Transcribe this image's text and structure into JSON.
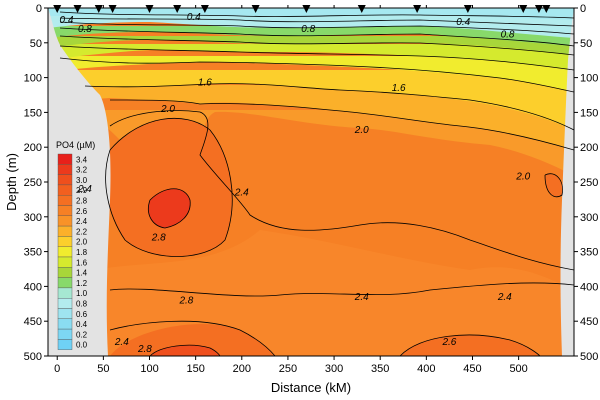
{
  "chart_data": {
    "type": "heatmap",
    "title": "",
    "xlabel": "Distance (kM)",
    "ylabel": "Depth (m)",
    "xlim": [
      -10,
      560
    ],
    "ylim": [
      500,
      0
    ],
    "x_ticks": [
      "0",
      "50",
      "100",
      "150",
      "200",
      "250",
      "300",
      "350",
      "400",
      "450",
      "500"
    ],
    "y_ticks": [
      "0",
      "50",
      "100",
      "150",
      "200",
      "250",
      "300",
      "350",
      "400",
      "450",
      "500"
    ],
    "legend": {
      "title": "PO4 (µM)",
      "levels": [
        "3.4",
        "3.2",
        "3.0",
        "2.9",
        "2.8",
        "2.6",
        "2.4",
        "2.2",
        "2.0",
        "1.8",
        "1.6",
        "1.4",
        "1.2",
        "1.0",
        "0.8",
        "0.6",
        "0.4",
        "0.2",
        "0.0"
      ],
      "colors": [
        "#e8201a",
        "#ec3a1c",
        "#ef4f1d",
        "#f25f1f",
        "#f46f22",
        "#f68025",
        "#f89228",
        "#fbb02a",
        "#fccf2c",
        "#f1ec2e",
        "#d5ea2e",
        "#a8d63a",
        "#88d96a",
        "#a6e8d2",
        "#b3ecee",
        "#9fe4f0",
        "#8adcf1",
        "#7dd7f3",
        "#6fd1f5"
      ]
    },
    "station_distances_km": [
      0,
      22,
      45,
      60,
      100,
      130,
      160,
      215,
      270,
      330,
      390,
      445,
      505,
      522,
      530
    ],
    "contour_labels": [
      {
        "value": "0.4",
        "x": 10,
        "y": 17
      },
      {
        "value": "0.8",
        "x": 30,
        "y": 30
      },
      {
        "value": "0.4",
        "x": 148,
        "y": 13
      },
      {
        "value": "0.8",
        "x": 272,
        "y": 30
      },
      {
        "value": "0.4",
        "x": 440,
        "y": 20
      },
      {
        "value": "0.8",
        "x": 488,
        "y": 38
      },
      {
        "value": "1.6",
        "x": 160,
        "y": 107
      },
      {
        "value": "1.6",
        "x": 370,
        "y": 115
      },
      {
        "value": "2.0",
        "x": 120,
        "y": 145
      },
      {
        "value": "2.0",
        "x": 330,
        "y": 175
      },
      {
        "value": "2.0",
        "x": 505,
        "y": 242
      },
      {
        "value": "2.4",
        "x": 30,
        "y": 260
      },
      {
        "value": "2.4",
        "x": 200,
        "y": 265
      },
      {
        "value": "2.8",
        "x": 110,
        "y": 330
      },
      {
        "value": "2.8",
        "x": 140,
        "y": 420
      },
      {
        "value": "2.4",
        "x": 330,
        "y": 415
      },
      {
        "value": "2.4",
        "x": 485,
        "y": 415
      },
      {
        "value": "2.4",
        "x": 70,
        "y": 480
      },
      {
        "value": "2.8",
        "x": 95,
        "y": 490
      },
      {
        "value": "2.6",
        "x": 425,
        "y": 480
      }
    ]
  },
  "colors": {
    "land": "#e3e3e3",
    "grid_border": "#000000"
  }
}
